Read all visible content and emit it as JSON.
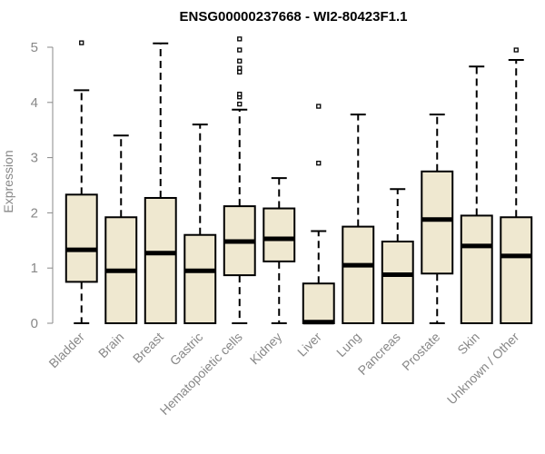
{
  "chart_data": {
    "type": "boxplot",
    "title": "ENSG00000237668 - WI2-80423F1.1",
    "xlabel": "",
    "ylabel": "Expression",
    "ylim": [
      0,
      5.2
    ],
    "yticks": [
      0,
      1,
      2,
      3,
      4,
      5
    ],
    "grid": false,
    "box_color": "#efe8d0",
    "categories": [
      "Bladder",
      "Brain",
      "Breast",
      "Gastric",
      "Hematopoietic cells",
      "Kidney",
      "Liver",
      "Lung",
      "Pancreas",
      "Prostate",
      "Skin",
      "Unknown / Other"
    ],
    "series": [
      {
        "name": "Bladder",
        "min": 0,
        "q1": 0.75,
        "median": 1.33,
        "q3": 2.33,
        "max": 4.22,
        "outliers": [
          5.08
        ]
      },
      {
        "name": "Brain",
        "min": 0,
        "q1": 0,
        "median": 0.95,
        "q3": 1.92,
        "max": 3.4,
        "outliers": []
      },
      {
        "name": "Breast",
        "min": 0,
        "q1": 0,
        "median": 1.27,
        "q3": 2.27,
        "max": 5.07,
        "outliers": []
      },
      {
        "name": "Gastric",
        "min": 0,
        "q1": 0,
        "median": 0.95,
        "q3": 1.6,
        "max": 3.6,
        "outliers": []
      },
      {
        "name": "Hematopoietic cells",
        "min": 0,
        "q1": 0.87,
        "median": 1.48,
        "q3": 2.12,
        "max": 3.87,
        "outliers": [
          3.97,
          4.1,
          4.15,
          4.55,
          4.62,
          4.75,
          4.95,
          5.15
        ]
      },
      {
        "name": "Kidney",
        "min": 0,
        "q1": 1.12,
        "median": 1.53,
        "q3": 2.08,
        "max": 2.63,
        "outliers": []
      },
      {
        "name": "Liver",
        "min": 0,
        "q1": 0,
        "median": 0.02,
        "q3": 0.72,
        "max": 1.67,
        "outliers": [
          2.9,
          3.93
        ]
      },
      {
        "name": "Lung",
        "min": 0,
        "q1": 0,
        "median": 1.05,
        "q3": 1.75,
        "max": 3.78,
        "outliers": []
      },
      {
        "name": "Pancreas",
        "min": 0,
        "q1": 0,
        "median": 0.88,
        "q3": 1.48,
        "max": 2.43,
        "outliers": []
      },
      {
        "name": "Prostate",
        "min": 0,
        "q1": 0.9,
        "median": 1.88,
        "q3": 2.75,
        "max": 3.78,
        "outliers": []
      },
      {
        "name": "Skin",
        "min": 0,
        "q1": 0,
        "median": 1.4,
        "q3": 1.95,
        "max": 4.65,
        "outliers": []
      },
      {
        "name": "Unknown / Other",
        "min": 0,
        "q1": 0,
        "median": 1.22,
        "q3": 1.92,
        "max": 4.77,
        "outliers": [
          4.95
        ]
      }
    ]
  }
}
